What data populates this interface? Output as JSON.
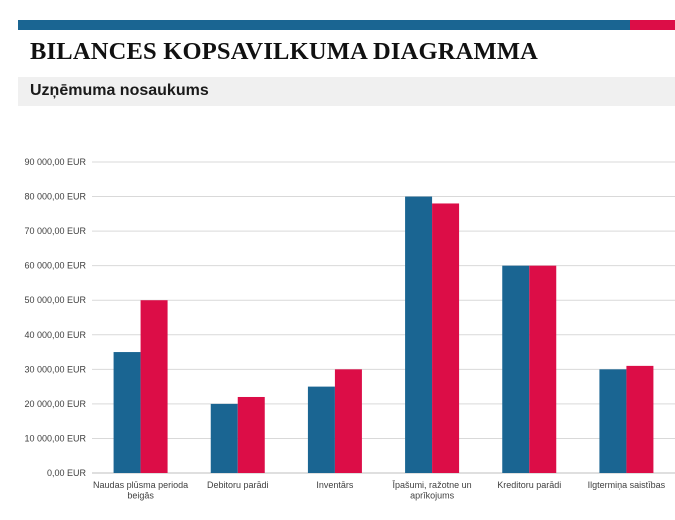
{
  "header": {
    "title": "BILANCES KOPSAVILKUMA DIAGRAMMA",
    "subtitle": "Uzņēmuma nosaukums",
    "accent_blue": "#1a6592",
    "accent_red": "#dc0d47"
  },
  "chart_data": {
    "type": "bar",
    "categories": [
      "Naudas plūsma perioda beigās",
      "Debitoru parādi",
      "Inventārs",
      "Īpašumi, ražotne un aprīkojums",
      "Kreditoru parādi",
      "Ilgtermiņa saistības"
    ],
    "series": [
      {
        "values": [
          35000,
          20000,
          25000,
          80000,
          60000,
          30000
        ],
        "color": "#1a6592"
      },
      {
        "values": [
          50000,
          22000,
          30000,
          78000,
          60000,
          31000
        ],
        "color": "#dc0d47"
      }
    ],
    "ylim": [
      0,
      90000
    ],
    "yticks": [
      0,
      10000,
      20000,
      30000,
      40000,
      50000,
      60000,
      70000,
      80000,
      90000
    ],
    "ytick_labels": [
      "0,00 EUR",
      "10 000,00 EUR",
      "20 000,00 EUR",
      "30 000,00 EUR",
      "40 000,00 EUR",
      "50 000,00 EUR",
      "60 000,00 EUR",
      "70 000,00 EUR",
      "80 000,00 EUR",
      "90 000,00 EUR"
    ],
    "category_label_lines": [
      [
        "Naudas plūsma perioda",
        "beigās"
      ],
      [
        "Debitoru parādi"
      ],
      [
        "Inventārs"
      ],
      [
        "Īpašumi, ražotne un",
        "aprīkojums"
      ],
      [
        "Kreditoru parādi"
      ],
      [
        "Ilgtermiņa saistības"
      ]
    ],
    "grid": true,
    "legend": "none"
  }
}
